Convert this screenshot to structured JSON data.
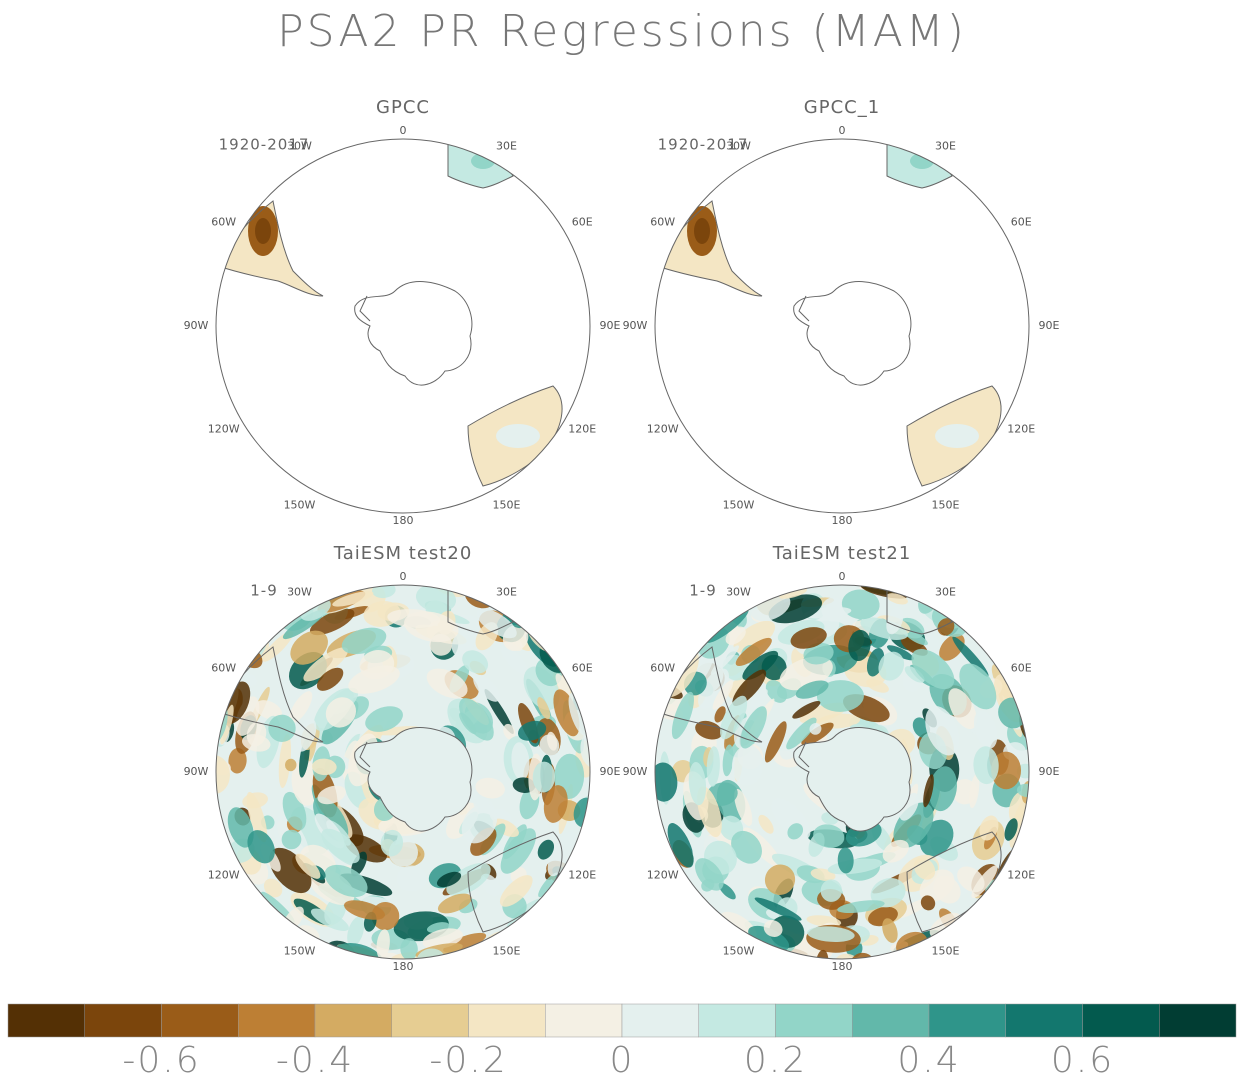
{
  "title": "PSA2 PR Regressions (MAM)",
  "lon_labels": [
    "0",
    "30E",
    "60E",
    "90E",
    "120E",
    "150E",
    "180",
    "150W",
    "120W",
    "90W",
    "60W",
    "30W"
  ],
  "panels": [
    {
      "title": "GPCC",
      "period": "1920-2017"
    },
    {
      "title": "GPCC_1",
      "period": "1920-2017"
    },
    {
      "title": "TaiESM test20",
      "period": "1-9"
    },
    {
      "title": "TaiESM test21",
      "period": "1-9"
    }
  ],
  "colorbar": {
    "colors": [
      "#543005",
      "#7b450c",
      "#9a5c18",
      "#bd7f34",
      "#d4ab62",
      "#e6cd92",
      "#f4e6c4",
      "#f4f0e4",
      "#e4f0ee",
      "#c4e9e2",
      "#92d5c8",
      "#62b8aa",
      "#2f958a",
      "#13776e",
      "#035a4e",
      "#013d33"
    ],
    "lim": [
      -0.8,
      0.8
    ],
    "ticks": [
      -0.6,
      -0.4,
      -0.2,
      0,
      0.2,
      0.4,
      0.6
    ]
  }
}
